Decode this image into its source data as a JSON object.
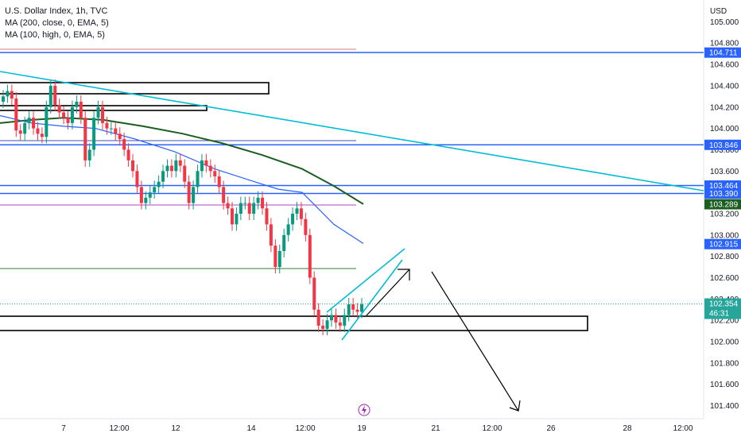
{
  "legend": {
    "title": "U.S. Dollar Index, 1h, TVC",
    "ma1": "MA (200, close, 0, EMA, 5)",
    "ma2": "MA (100, high, 0, EMA, 5)"
  },
  "colors": {
    "up": "#089981",
    "down": "#f23645",
    "ma200": "#1b5e20",
    "ma100": "#2962ff",
    "trend": "#00bcd4",
    "level": "#2962ff",
    "dark_green_badge": "#1b5e20"
  },
  "chart_data": {
    "type": "candlestick",
    "instrument": "U.S. Dollar Index, 1h, TVC",
    "currency_label": "USD",
    "y_ticks": [
      "105.000",
      "104.800",
      "104.600",
      "104.400",
      "104.200",
      "104.000",
      "103.800",
      "103.600",
      "103.200",
      "103.000",
      "102.800",
      "102.600",
      "102.400",
      "102.200",
      "102.000",
      "101.800",
      "101.600",
      "101.400"
    ],
    "x_ticks": [
      "7",
      "12:00",
      "12",
      "14",
      "12:00",
      "19",
      "21",
      "12:00",
      "26",
      "28",
      "12:00"
    ],
    "ylim": [
      101.25,
      105.15
    ],
    "price_badges": [
      {
        "label": "104.711",
        "value": 104.711,
        "kind": "level"
      },
      {
        "label": "103.846",
        "value": 103.846,
        "kind": "level"
      },
      {
        "label": "103.464",
        "value": 103.464,
        "kind": "level"
      },
      {
        "label": "103.390",
        "value": 103.39,
        "kind": "level"
      },
      {
        "label": "103.289",
        "value": 103.289,
        "kind": "ma200"
      },
      {
        "label": "102.915",
        "value": 102.915,
        "kind": "ma100"
      },
      {
        "label": "102.354",
        "value": 102.354,
        "kind": "last",
        "countdown": "46:31"
      }
    ],
    "series_ma200": [
      104.05,
      104.08,
      104.1,
      104.08,
      104.02,
      103.95,
      103.86,
      103.75,
      103.62,
      103.46,
      103.29
    ],
    "series_ma100": [
      104.12,
      104.05,
      104.02,
      104.0,
      103.9,
      103.78,
      103.62,
      103.5,
      103.43,
      103.4,
      103.1,
      102.92
    ],
    "closes": [
      104.3,
      104.35,
      104.28,
      103.98,
      103.95,
      104.05,
      104.1,
      104.0,
      103.95,
      103.92,
      104.2,
      104.4,
      104.22,
      104.15,
      104.1,
      104.05,
      104.2,
      104.25,
      104.1,
      103.7,
      103.8,
      104.1,
      104.2,
      104.05,
      104.0,
      104.0,
      103.95,
      103.9,
      103.8,
      103.7,
      103.6,
      103.45,
      103.3,
      103.35,
      103.4,
      103.45,
      103.5,
      103.6,
      103.65,
      103.6,
      103.7,
      103.65,
      103.5,
      103.3,
      103.45,
      103.6,
      103.7,
      103.65,
      103.6,
      103.55,
      103.45,
      103.3,
      103.25,
      103.1,
      103.2,
      103.3,
      103.3,
      103.2,
      103.3,
      103.35,
      103.25,
      103.1,
      102.9,
      102.7,
      102.85,
      103.0,
      103.1,
      103.2,
      103.25,
      103.15,
      103.0,
      102.6,
      102.3,
      102.15,
      102.12,
      102.2,
      102.25,
      102.18,
      102.15,
      102.25,
      102.35,
      102.3,
      102.28,
      102.35
    ]
  }
}
